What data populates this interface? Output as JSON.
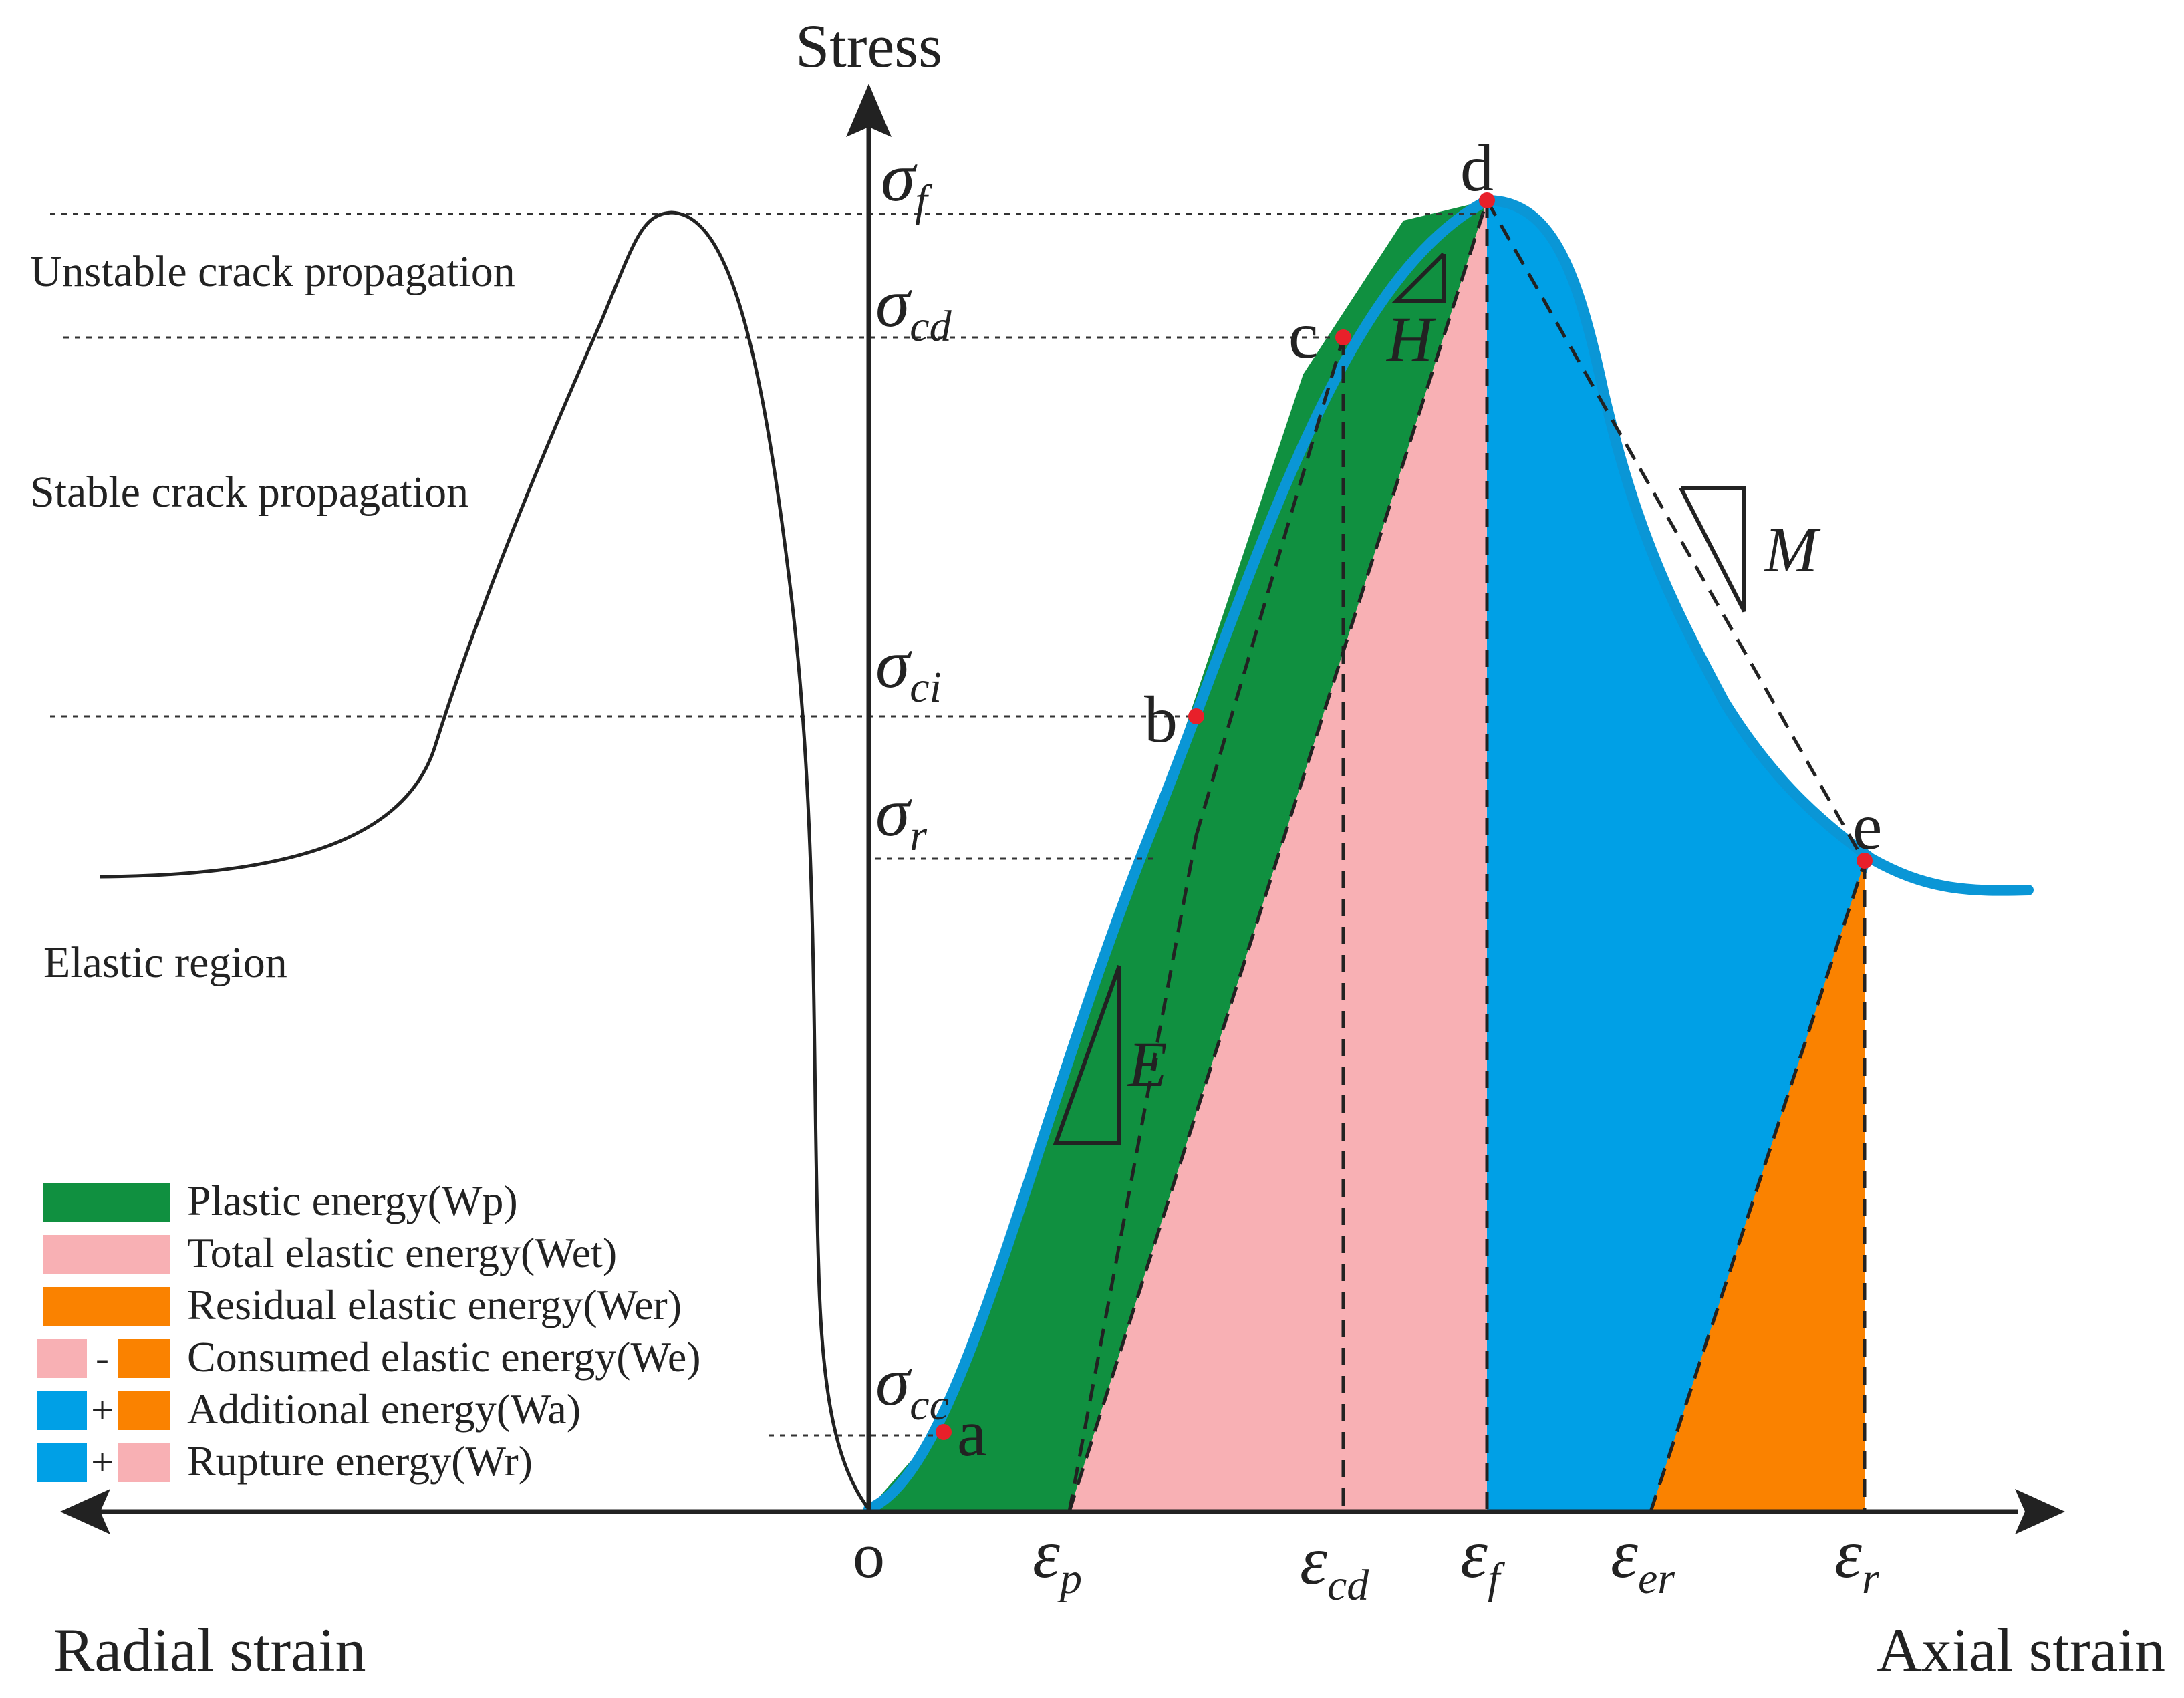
{
  "figure": {
    "axes": {
      "y_title": "Stress",
      "x_left_title": "Radial strain",
      "x_right_title": "Axial strain",
      "origin": "o"
    },
    "stress_levels": [
      {
        "symbol": "σ",
        "sub": "f"
      },
      {
        "symbol": "σ",
        "sub": "cd"
      },
      {
        "symbol": "σ",
        "sub": "ci"
      },
      {
        "symbol": "σ",
        "sub": "r"
      },
      {
        "symbol": "σ",
        "sub": "cc"
      }
    ],
    "strain_ticks": [
      {
        "symbol": "ε",
        "sub": "p"
      },
      {
        "symbol": "ε",
        "sub": "cd"
      },
      {
        "symbol": "ε",
        "sub": "f"
      },
      {
        "symbol": "ε",
        "sub": "er"
      },
      {
        "symbol": "ε",
        "sub": "r"
      }
    ],
    "points": [
      "a",
      "b",
      "c",
      "d",
      "e"
    ],
    "moduli": [
      "E",
      "H",
      "M"
    ],
    "regions": [
      "Unstable crack propagation",
      "Stable crack propagation",
      "Elastic region"
    ],
    "legend": [
      {
        "label": "Plastic energy(Wp)",
        "key": "single",
        "colors": [
          "#109040"
        ]
      },
      {
        "label": "Total elastic energy(Wet)",
        "key": "single",
        "colors": [
          "#f8b0b4"
        ]
      },
      {
        "label": "Residual elastic energy(Wer)",
        "key": "single",
        "colors": [
          "#fa8200"
        ]
      },
      {
        "label": "Consumed elastic energy(We)",
        "key": "pair",
        "op": "-",
        "colors": [
          "#f8b0b4",
          "#fa8200"
        ]
      },
      {
        "label": "Additional energy(Wa)",
        "key": "pair",
        "op": "+",
        "colors": [
          "#00a0e6",
          "#fa8200"
        ]
      },
      {
        "label": "Rupture energy(Wr)",
        "key": "pair",
        "op": "+",
        "colors": [
          "#00a0e6",
          "#f8b0b4"
        ]
      }
    ],
    "colors": {
      "plastic": "#109040",
      "elastic_total": "#f8b0b4",
      "residual": "#fa8200",
      "additional": "#00a0e6",
      "curve": "#0a96d6",
      "point": "#e8202a",
      "ink": "#222222"
    }
  }
}
